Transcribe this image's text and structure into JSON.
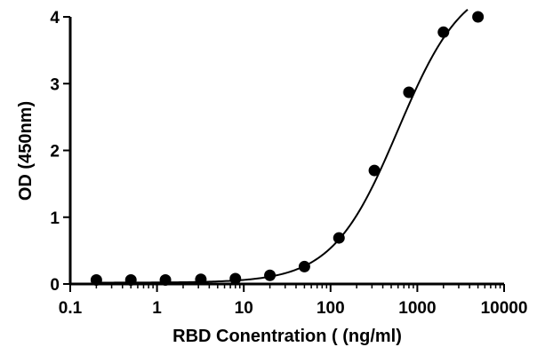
{
  "chart_data": {
    "type": "scatter",
    "title": "",
    "xlabel": "RBD Conentration ( (ng/ml)",
    "ylabel": "OD (450nm)",
    "xscale": "log",
    "xlim": [
      0.1,
      10000
    ],
    "ylim": [
      0,
      4
    ],
    "x_ticks": [
      0.1,
      1,
      10,
      100,
      1000,
      10000
    ],
    "x_tick_labels": [
      "0.1",
      "1",
      "10",
      "100",
      "1000",
      "10000"
    ],
    "y_ticks": [
      0,
      1,
      2,
      3,
      4
    ],
    "y_tick_labels": [
      "0",
      "1",
      "2",
      "3",
      "4"
    ],
    "grid": false,
    "legend": "none",
    "colors": {
      "points": "#000000",
      "curve": "#000000",
      "axes": "#000000"
    },
    "series": [
      {
        "marker": "circle",
        "x": [
          0.2,
          0.5,
          1.25,
          3.2,
          8,
          20,
          50,
          125,
          320,
          800,
          2000,
          5000
        ],
        "y": [
          0.06,
          0.06,
          0.06,
          0.07,
          0.08,
          0.13,
          0.26,
          0.69,
          1.7,
          2.87,
          3.77,
          4.0
        ]
      }
    ],
    "fit_curve": {
      "type": "4PL",
      "bottom": 0.02,
      "top": 4.6,
      "ec50": 600,
      "hill": 1.15,
      "x_range": [
        0.2,
        3800
      ]
    }
  }
}
